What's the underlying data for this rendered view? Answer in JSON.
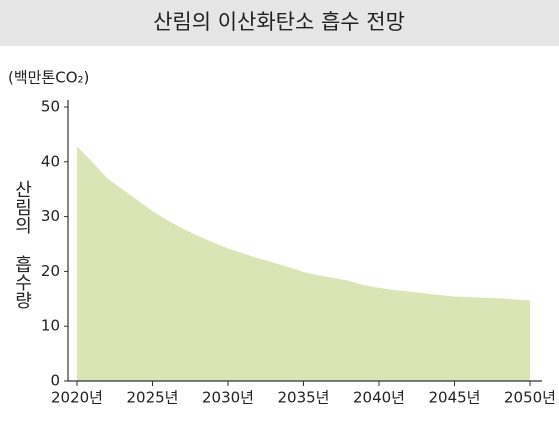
{
  "chart_data": {
    "type": "area",
    "title": "산림의 이산화탄소 흡수 전망",
    "unit_label": "(백만톤CO₂)",
    "y_axis_label": "산림의 흡수량",
    "x": [
      2020,
      2021,
      2022,
      2023,
      2024,
      2025,
      2026,
      2027,
      2028,
      2029,
      2030,
      2031,
      2032,
      2033,
      2034,
      2035,
      2036,
      2037,
      2038,
      2039,
      2040,
      2041,
      2042,
      2043,
      2044,
      2045,
      2046,
      2047,
      2048,
      2049,
      2050
    ],
    "series": [
      {
        "color": "#dbe4b4",
        "values": [
          42.8,
          40,
          37,
          35,
          33,
          31,
          29.3,
          27.8,
          26.5,
          25.3,
          24.2,
          23.3,
          22.4,
          21.6,
          20.8,
          19.9,
          19.3,
          18.8,
          18.3,
          17.5,
          17.0,
          16.6,
          16.3,
          16.0,
          15.7,
          15.4,
          15.3,
          15.2,
          15.1,
          14.9,
          14.7
        ]
      }
    ],
    "xlim": [
      2020,
      2050
    ],
    "xticks": [
      {
        "value": 2020,
        "label": "2020년"
      },
      {
        "value": 2025,
        "label": "2025년"
      },
      {
        "value": 2030,
        "label": "2030년"
      },
      {
        "value": 2035,
        "label": "2035년"
      },
      {
        "value": 2040,
        "label": "2040년"
      },
      {
        "value": 2045,
        "label": "2045년"
      },
      {
        "value": 2050,
        "label": "2050년"
      }
    ],
    "ylim": [
      0,
      50
    ],
    "yticks": [
      0,
      10,
      20,
      30,
      40,
      50
    ]
  }
}
